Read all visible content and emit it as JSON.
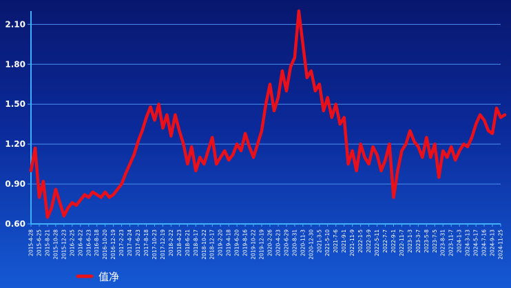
{
  "chart_data": {
    "type": "line",
    "title": "",
    "xlabel": "",
    "ylabel": "",
    "ylim": [
      0.6,
      2.2
    ],
    "yticks": [
      "0.60",
      "0.90",
      "1.20",
      "1.50",
      "1.80",
      "2.10"
    ],
    "ytick_values": [
      0.6,
      0.9,
      1.2,
      1.5,
      1.8,
      2.1
    ],
    "grid": true,
    "legend_position": "bottom-left",
    "colors": {
      "line": "#e8101a",
      "grid": "#4b8ff0",
      "axis": "#3fb0ff"
    },
    "x_labels": [
      "2015-4-28",
      "2015-6-25",
      "2015-8-21",
      "2015-10-28",
      "2015-12-23",
      "2016-2-25",
      "2016-4-22",
      "2016-6-23",
      "2016-8-18",
      "2016-10-20",
      "2016-12-19",
      "2017-2-23",
      "2017-4-24",
      "2017-6-23",
      "2017-8-18",
      "2017-10-23",
      "2017-12-19",
      "2018-2-22",
      "2018-4-23",
      "2018-6-21",
      "2018-8-17",
      "2018-10-22",
      "2018-12-17",
      "2019-2-20",
      "2019-4-18",
      "2019-6-20",
      "2019-8-16",
      "2019-10-22",
      "2019-12-19",
      "2020-2-26",
      "2020-4-23",
      "2020-6-29",
      "2020-8-31",
      "2020-11-3",
      "2020-12-30",
      "2021-3-5",
      "2021-5-10",
      "2021-7-6",
      "2021-9-1",
      "2021-11-9",
      "2022-1-5",
      "2022-3-9",
      "2022-5-11",
      "2022-7-7",
      "2022-9-1",
      "2022-11-7",
      "2023-1-3",
      "2023-3-7",
      "2023-5-8",
      "2023-7-5",
      "2023-8-31",
      "2023-11-7",
      "2024-1-3",
      "2024-3-13",
      "2024-5-17",
      "2024-7-16",
      "2024-9-13",
      "2024-11-25"
    ],
    "series": [
      {
        "name": "值净",
        "x": [
          0,
          0.5,
          1,
          1.5,
          2,
          2.5,
          3,
          3.5,
          4,
          4.5,
          5,
          5.5,
          6,
          6.5,
          7,
          7.5,
          8,
          8.5,
          9,
          9.5,
          10,
          10.5,
          11,
          11.5,
          12,
          12.5,
          13,
          13.5,
          14,
          14.5,
          15,
          15.5,
          16,
          16.5,
          17,
          17.5,
          18,
          18.5,
          19,
          19.5,
          20,
          20.5,
          21,
          21.5,
          22,
          22.5,
          23,
          23.5,
          24,
          24.5,
          25,
          25.5,
          26,
          26.5,
          27,
          27.5,
          28,
          28.5,
          29,
          29.5,
          30,
          30.5,
          31,
          31.5,
          32,
          32.5,
          33,
          33.5,
          34,
          34.5,
          35,
          35.5,
          36,
          36.5,
          37,
          37.5,
          38,
          38.5,
          39,
          39.5,
          40,
          40.5,
          41,
          41.5,
          42,
          42.5,
          43,
          43.5,
          44,
          44.5,
          45,
          45.5,
          46,
          46.5,
          47,
          47.5,
          48,
          48.5,
          49,
          49.5,
          50,
          50.5,
          51,
          51.5,
          52,
          52.5,
          53,
          53.5,
          54,
          54.5,
          55,
          55.5,
          56,
          56.5,
          57,
          57.5
        ],
        "values": [
          1.0,
          1.17,
          0.8,
          0.92,
          0.65,
          0.72,
          0.86,
          0.76,
          0.66,
          0.72,
          0.76,
          0.74,
          0.78,
          0.82,
          0.8,
          0.84,
          0.82,
          0.8,
          0.84,
          0.8,
          0.82,
          0.86,
          0.9,
          0.98,
          1.05,
          1.12,
          1.22,
          1.3,
          1.4,
          1.48,
          1.38,
          1.5,
          1.32,
          1.42,
          1.26,
          1.42,
          1.3,
          1.2,
          1.05,
          1.18,
          1.0,
          1.1,
          1.05,
          1.15,
          1.25,
          1.05,
          1.1,
          1.15,
          1.08,
          1.12,
          1.2,
          1.15,
          1.28,
          1.18,
          1.1,
          1.2,
          1.3,
          1.5,
          1.65,
          1.45,
          1.55,
          1.75,
          1.6,
          1.78,
          1.85,
          2.2,
          1.95,
          1.7,
          1.75,
          1.6,
          1.65,
          1.45,
          1.55,
          1.4,
          1.5,
          1.35,
          1.4,
          1.05,
          1.15,
          1.0,
          1.2,
          1.1,
          1.05,
          1.18,
          1.12,
          1.0,
          1.08,
          1.2,
          0.8,
          1.0,
          1.15,
          1.2,
          1.3,
          1.22,
          1.18,
          1.1,
          1.25,
          1.1,
          1.2,
          0.95,
          1.15,
          1.1,
          1.18,
          1.08,
          1.15,
          1.2,
          1.18,
          1.25,
          1.35,
          1.42,
          1.38,
          1.3,
          1.28,
          1.47,
          1.4,
          1.42
        ]
      }
    ]
  }
}
